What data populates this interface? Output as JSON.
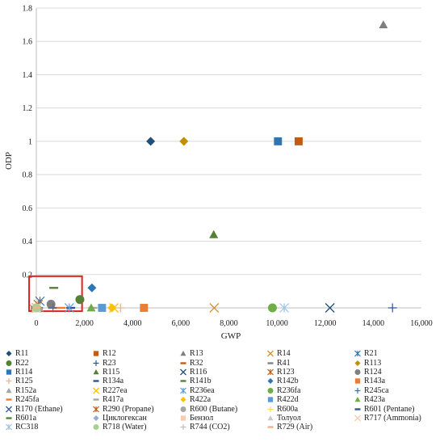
{
  "chart_data": {
    "type": "scatter",
    "title": "",
    "xlabel": "GWP",
    "ylabel": "ODP",
    "xlim": [
      0,
      16000
    ],
    "ylim": [
      0,
      1.8
    ],
    "x_ticks": [
      "0",
      "2,000",
      "4,000",
      "6,000",
      "8,000",
      "10,000",
      "12,000",
      "14,000",
      "16,000"
    ],
    "y_ticks": [
      "0",
      "0.2",
      "0.4",
      "0.6",
      "0.8",
      "1",
      "1.2",
      "1.4",
      "1.6",
      "1.8"
    ],
    "grid": "horizontal",
    "legend_position": "bottom",
    "highlight_box": {
      "x": [
        -300,
        1900
      ],
      "y": [
        -0.02,
        0.19
      ],
      "color": "#e0201e"
    },
    "series": [
      {
        "name": "R11",
        "marker": "diamond",
        "color": "#1f4e79",
        "x": 4750,
        "y": 1.0
      },
      {
        "name": "R12",
        "marker": "square",
        "color": "#c55a11",
        "x": 10900,
        "y": 1.0
      },
      {
        "name": "R13",
        "marker": "triangle",
        "color": "#7f7f7f",
        "x": 14420,
        "y": 1.7
      },
      {
        "name": "R14",
        "marker": "x",
        "color": "#d6903b",
        "x": 7390,
        "y": 0.0
      },
      {
        "name": "R21",
        "marker": "star",
        "color": "#2e75b6",
        "x": 151,
        "y": 0.04
      },
      {
        "name": "R22",
        "marker": "circle",
        "color": "#548235",
        "x": 1810,
        "y": 0.05
      },
      {
        "name": "R23",
        "marker": "plus",
        "color": "#2f5597",
        "x": 14800,
        "y": 0.0
      },
      {
        "name": "R32",
        "marker": "dash",
        "color": "#c55a11",
        "x": 675,
        "y": 0.0
      },
      {
        "name": "R41",
        "marker": "dash",
        "color": "#7f7f7f",
        "x": 92,
        "y": 0.0
      },
      {
        "name": "R113",
        "marker": "diamond",
        "color": "#bf9000",
        "x": 6130,
        "y": 1.0
      },
      {
        "name": "R114",
        "marker": "square",
        "color": "#2e75b6",
        "x": 10040,
        "y": 1.0
      },
      {
        "name": "R115",
        "marker": "triangle",
        "color": "#548235",
        "x": 7370,
        "y": 0.44
      },
      {
        "name": "R116",
        "marker": "x",
        "color": "#1f4e79",
        "x": 12200,
        "y": 0.0
      },
      {
        "name": "R123",
        "marker": "star",
        "color": "#c55a11",
        "x": 77,
        "y": 0.02
      },
      {
        "name": "R124",
        "marker": "circle",
        "color": "#7f7f7f",
        "x": 609,
        "y": 0.022
      },
      {
        "name": "R125",
        "marker": "plus",
        "color": "#f4b183",
        "x": 3500,
        "y": 0.0
      },
      {
        "name": "R134a",
        "marker": "dash",
        "color": "#2f5597",
        "x": 1430,
        "y": 0.0
      },
      {
        "name": "R141b",
        "marker": "dash",
        "color": "#548235",
        "x": 725,
        "y": 0.12
      },
      {
        "name": "R142b",
        "marker": "diamond",
        "color": "#2e75b6",
        "x": 2310,
        "y": 0.12
      },
      {
        "name": "R143a",
        "marker": "square",
        "color": "#ed7d31",
        "x": 4470,
        "y": 0.0
      },
      {
        "name": "R152a",
        "marker": "triangle",
        "color": "#a5a5a5",
        "x": 124,
        "y": 0.0
      },
      {
        "name": "R227ea",
        "marker": "x",
        "color": "#ffc000",
        "x": 3220,
        "y": 0.0
      },
      {
        "name": "R236ea",
        "marker": "star",
        "color": "#5b9bd5",
        "x": 1370,
        "y": 0.0
      },
      {
        "name": "R236fa",
        "marker": "circle",
        "color": "#70ad47",
        "x": 9810,
        "y": 0.0
      },
      {
        "name": "R245ca",
        "marker": "plus",
        "color": "#2e75b6",
        "x": 693,
        "y": 0.0
      },
      {
        "name": "R245fa",
        "marker": "dash",
        "color": "#ed7d31",
        "x": 1030,
        "y": 0.0
      },
      {
        "name": "R417a",
        "marker": "dash",
        "color": "#a5a5a5",
        "x": 2346,
        "y": 0.0
      },
      {
        "name": "R422a",
        "marker": "diamond",
        "color": "#ffc000",
        "x": 3143,
        "y": 0.0
      },
      {
        "name": "R422d",
        "marker": "square",
        "color": "#5b9bd5",
        "x": 2729,
        "y": 0.0
      },
      {
        "name": "R423a",
        "marker": "triangle",
        "color": "#70ad47",
        "x": 2280,
        "y": 0.0
      },
      {
        "name": "R170 (Ethane)",
        "marker": "x",
        "color": "#2f5597",
        "x": 6,
        "y": 0.0
      },
      {
        "name": "R290 (Propane)",
        "marker": "star",
        "color": "#c55a11",
        "x": 3,
        "y": 0.0
      },
      {
        "name": "R600 (Butane)",
        "marker": "circle",
        "color": "#a5a5a5",
        "x": 4,
        "y": 0.0
      },
      {
        "name": "R600a",
        "marker": "plus",
        "color": "#ffd966",
        "x": 3,
        "y": 0.0
      },
      {
        "name": "R601 (Pentane)",
        "marker": "dash",
        "color": "#2f5597",
        "x": 5,
        "y": 0.0
      },
      {
        "name": "R601a",
        "marker": "dash",
        "color": "#548235",
        "x": 4,
        "y": 0.0
      },
      {
        "name": "Циклогексан",
        "marker": "diamond",
        "color": "#8faadc",
        "x": 3,
        "y": 0.0
      },
      {
        "name": "Бензол",
        "marker": "square",
        "color": "#f8cbad",
        "x": 3,
        "y": 0.0
      },
      {
        "name": "Толуол",
        "marker": "triangle",
        "color": "#c9c9c9",
        "x": 3,
        "y": 0.0
      },
      {
        "name": "R717 (Ammonia)",
        "marker": "x",
        "color": "#f8cbad",
        "x": 0,
        "y": 0.0
      },
      {
        "name": "RC318",
        "marker": "star",
        "color": "#9dc3e6",
        "x": 10300,
        "y": 0.0
      },
      {
        "name": "R718 (Water)",
        "marker": "circle",
        "color": "#a9d18e",
        "x": 0,
        "y": 0.0
      },
      {
        "name": "R744 (CO2)",
        "marker": "plus",
        "color": "#bfbfbf",
        "x": 1,
        "y": 0.0
      },
      {
        "name": "R729 (Air)",
        "marker": "dash",
        "color": "#f4b183",
        "x": 0,
        "y": 0.0
      }
    ]
  }
}
